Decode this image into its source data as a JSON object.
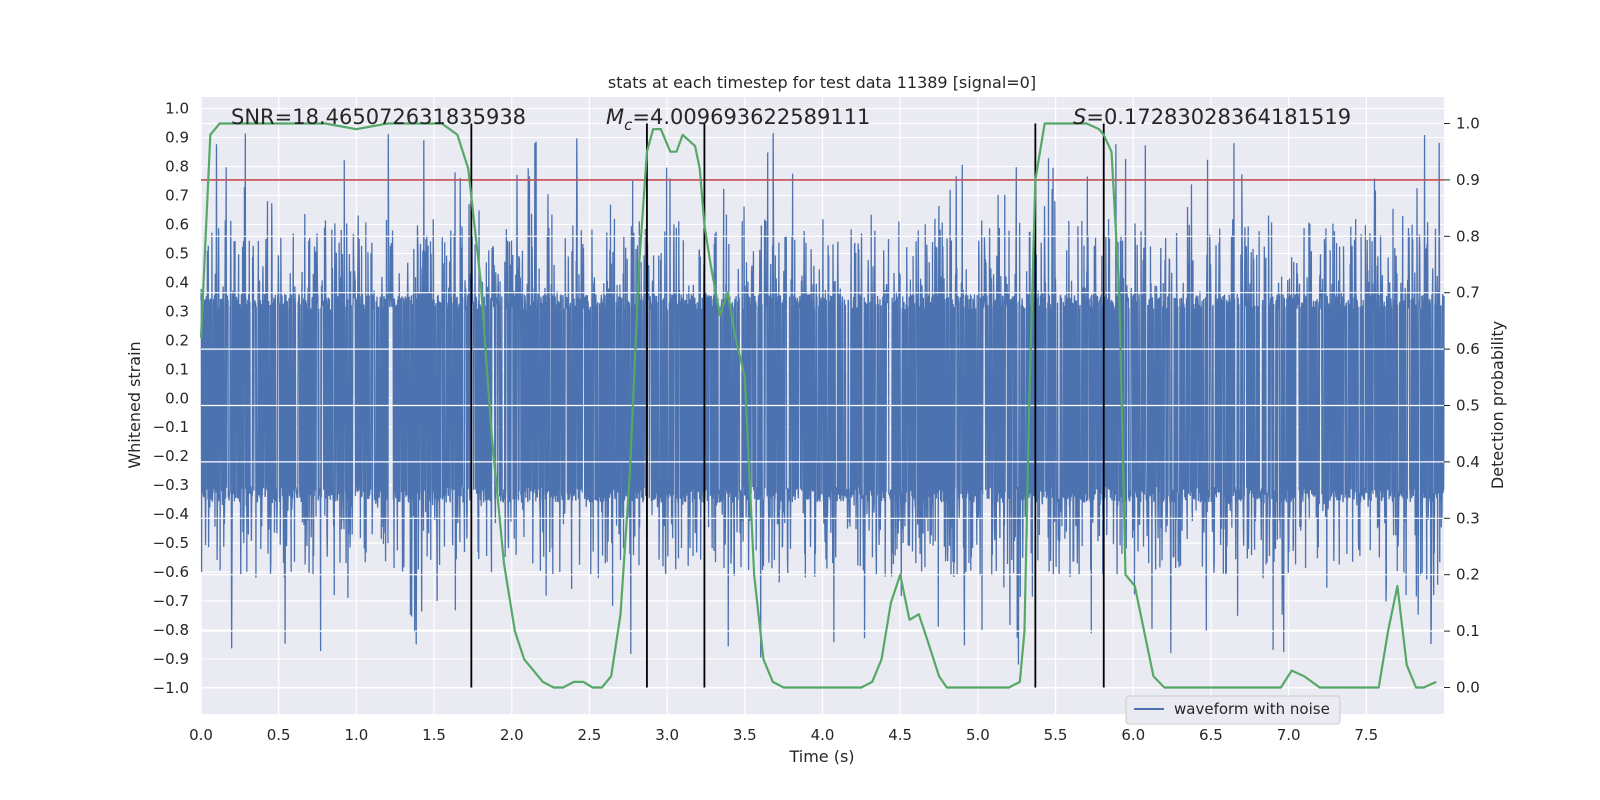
{
  "chart_data": {
    "type": "line",
    "title": "stats at each timestep for test data 11389 [signal=0]",
    "xlabel": "Time (s)",
    "ylabel_left": "Whitened strain",
    "ylabel_right": "Detection probability",
    "xlim": [
      0.0,
      8.0
    ],
    "ylim_left": [
      -1.09,
      1.04
    ],
    "ylim_right": [
      -0.047,
      1.047
    ],
    "x_ticks": [
      "0.0",
      "0.5",
      "1.0",
      "1.5",
      "2.0",
      "2.5",
      "3.0",
      "3.5",
      "4.0",
      "4.5",
      "5.0",
      "5.5",
      "6.0",
      "6.5",
      "7.0",
      "7.5"
    ],
    "y_ticks_left": [
      "1.0",
      "0.9",
      "0.8",
      "0.7",
      "0.6",
      "0.5",
      "0.4",
      "0.3",
      "0.2",
      "0.1",
      "0.0",
      "-0.1",
      "-0.2",
      "-0.3",
      "-0.4",
      "-0.5",
      "-0.6",
      "-0.7",
      "-0.8",
      "-0.9",
      "-1.0"
    ],
    "y_ticks_right": [
      "1.0",
      "0.9",
      "0.8",
      "0.7",
      "0.6",
      "0.5",
      "0.4",
      "0.3",
      "0.2",
      "0.1",
      "0.0"
    ],
    "grid": true,
    "annotations": {
      "snr": "SNR=18.465072631835938",
      "mc_symbol": "M",
      "mc_sub": "c",
      "mc_value": "=4.009693622589111",
      "s_symbol": "S",
      "s_value": "=0.17283028364181519"
    },
    "threshold": {
      "axis": "right",
      "value": 0.9,
      "color": "#c44e52"
    },
    "vertical_lines": [
      1.74,
      2.87,
      3.24,
      5.37,
      5.81
    ],
    "series": [
      {
        "name": "waveform with noise",
        "axis": "left",
        "color": "#4c72b0",
        "style": "noise",
        "samples": 4096,
        "core_amplitude": 0.36,
        "outer_amplitude": 0.62,
        "spike_max": 0.92
      },
      {
        "name": "detection probability",
        "axis": "right",
        "color": "#55a868",
        "x": [
          0.0,
          0.06,
          0.12,
          0.25,
          0.5,
          0.8,
          1.0,
          1.2,
          1.4,
          1.55,
          1.65,
          1.72,
          1.8,
          1.87,
          1.95,
          2.02,
          2.08,
          2.14,
          2.2,
          2.27,
          2.33,
          2.4,
          2.46,
          2.52,
          2.58,
          2.64,
          2.7,
          2.76,
          2.82,
          2.87,
          2.91,
          2.96,
          3.02,
          3.06,
          3.1,
          3.14,
          3.18,
          3.21,
          3.24,
          3.28,
          3.34,
          3.39,
          3.44,
          3.5,
          3.56,
          3.62,
          3.68,
          3.75,
          3.85,
          3.95,
          4.05,
          4.15,
          4.25,
          4.32,
          4.38,
          4.44,
          4.5,
          4.56,
          4.62,
          4.68,
          4.75,
          4.8,
          4.9,
          5.0,
          5.1,
          5.2,
          5.27,
          5.3,
          5.33,
          5.37,
          5.43,
          5.5,
          5.6,
          5.7,
          5.78,
          5.81,
          5.86,
          5.91,
          5.95,
          6.01,
          6.07,
          6.13,
          6.2,
          6.4,
          6.6,
          6.8,
          6.95,
          7.02,
          7.1,
          7.2,
          7.35,
          7.5,
          7.58,
          7.64,
          7.7,
          7.76,
          7.82,
          7.87,
          7.95
        ],
        "y": [
          0.62,
          0.98,
          1.0,
          1.0,
          1.0,
          1.0,
          0.99,
          1.0,
          1.0,
          1.0,
          0.98,
          0.92,
          0.72,
          0.45,
          0.22,
          0.1,
          0.05,
          0.03,
          0.01,
          0.0,
          0.0,
          0.01,
          0.01,
          0.0,
          0.0,
          0.02,
          0.13,
          0.38,
          0.75,
          0.95,
          0.99,
          0.99,
          0.95,
          0.95,
          0.98,
          0.97,
          0.96,
          0.92,
          0.82,
          0.75,
          0.66,
          0.7,
          0.62,
          0.55,
          0.2,
          0.05,
          0.01,
          0.0,
          0.0,
          0.0,
          0.0,
          0.0,
          0.0,
          0.01,
          0.05,
          0.15,
          0.2,
          0.12,
          0.13,
          0.08,
          0.02,
          0.0,
          0.0,
          0.0,
          0.0,
          0.0,
          0.01,
          0.1,
          0.5,
          0.9,
          1.0,
          1.0,
          1.0,
          1.0,
          0.99,
          0.98,
          0.95,
          0.7,
          0.2,
          0.18,
          0.1,
          0.02,
          0.0,
          0.0,
          0.0,
          0.0,
          0.0,
          0.03,
          0.02,
          0.0,
          0.0,
          0.0,
          0.0,
          0.1,
          0.18,
          0.04,
          0.0,
          0.0,
          0.01
        ]
      }
    ],
    "legend": {
      "placement": "bottom-right",
      "entries": [
        "waveform with noise"
      ]
    }
  }
}
